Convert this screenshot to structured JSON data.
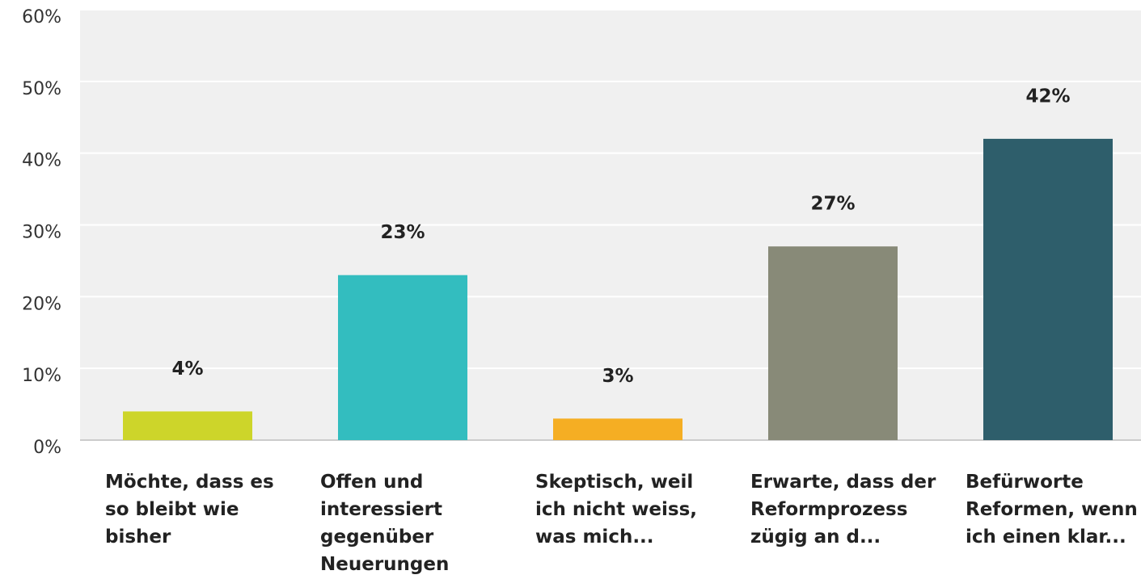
{
  "chart_data": {
    "type": "bar",
    "categories": [
      "Möchte, dass es so bleibt wie bisher",
      "Offen und interessiert gegenüber Neuerungen",
      "Skeptisch, weil ich nicht weiss, was mich...",
      "Erwarte, dass der Reformprozess zügig an d...",
      "Befürworte Reformen, wenn ich einen klar..."
    ],
    "values": [
      4,
      23,
      3,
      27,
      42
    ],
    "value_labels": [
      "4%",
      "23%",
      "3%",
      "27%",
      "42%"
    ],
    "colors": [
      "#cdd52a",
      "#33bdbf",
      "#f5ae23",
      "#888a78",
      "#2e5e6b"
    ],
    "ylim": [
      0,
      60
    ],
    "yticks": [
      {
        "value": 0,
        "label": "0%"
      },
      {
        "value": 10,
        "label": "10%"
      },
      {
        "value": 20,
        "label": "20%"
      },
      {
        "value": 30,
        "label": "30%"
      },
      {
        "value": 40,
        "label": "40%"
      },
      {
        "value": 50,
        "label": "50%"
      },
      {
        "value": 60,
        "label": "60%"
      }
    ],
    "grid": true
  }
}
